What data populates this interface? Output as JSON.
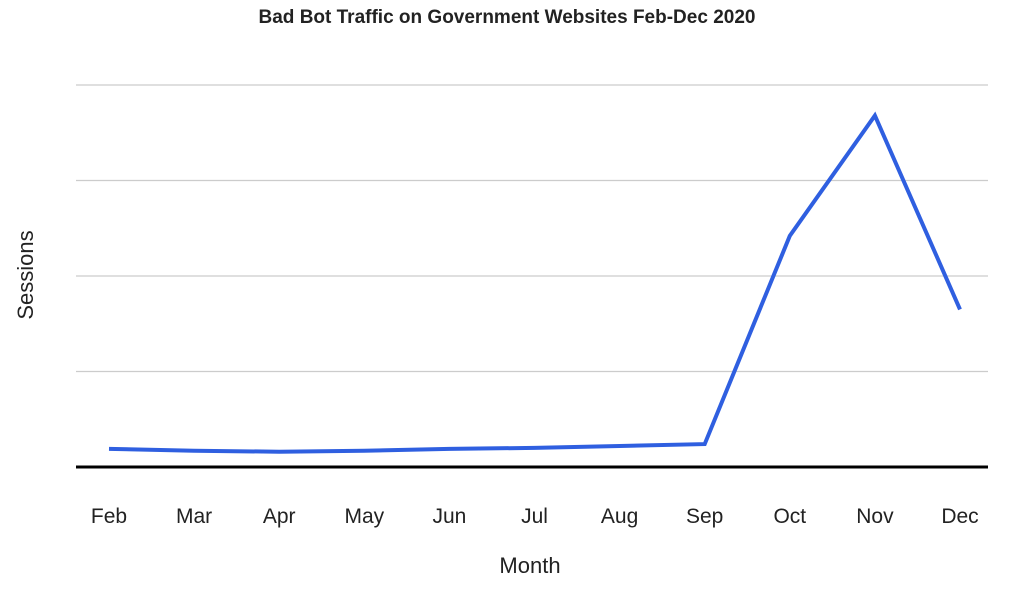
{
  "chart_data": {
    "type": "line",
    "title": "Bad Bot Traffic on Government Websites Feb-Dec 2020",
    "xlabel": "Month",
    "ylabel": "Sessions",
    "categories": [
      "Feb",
      "Mar",
      "Apr",
      "May",
      "Jun",
      "Jul",
      "Aug",
      "Sep",
      "Oct",
      "Nov",
      "Dec"
    ],
    "values": [
      0.19,
      0.17,
      0.16,
      0.17,
      0.19,
      0.2,
      0.22,
      0.24,
      2.42,
      3.68,
      1.65
    ],
    "ylim": [
      0,
      4
    ],
    "y_tick_labels_shown": false,
    "grid": true,
    "legend": "none",
    "colors": {
      "line": "#2f5fe0",
      "grid": "#cccccc",
      "baseline": "#000000"
    }
  }
}
